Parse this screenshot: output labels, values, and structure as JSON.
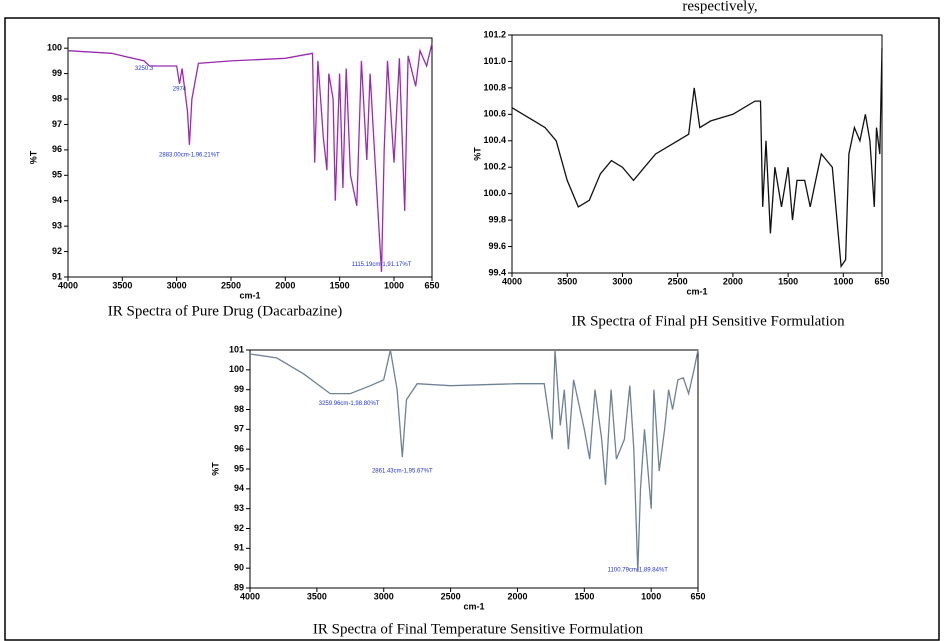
{
  "top_text": "respectively,",
  "chart_data": [
    {
      "type": "line",
      "caption": "IR Spectra of Pure Drug (Dacarbazine)",
      "xlabel": "cm-1",
      "ylabel": "%T",
      "color": "#9a2bb0",
      "xlim": [
        4000,
        650
      ],
      "ylim": [
        91,
        100.4
      ],
      "xticks": [
        4000,
        3500,
        3000,
        2500,
        2000,
        1500,
        1000,
        650
      ],
      "yticks": [
        91,
        92,
        93,
        94,
        95,
        96,
        97,
        98,
        99,
        100
      ],
      "x": [
        4000,
        3600,
        3300,
        3250,
        3000,
        2974,
        2950,
        2900,
        2883,
        2860,
        2800,
        2500,
        2000,
        1750,
        1730,
        1700,
        1650,
        1617,
        1600,
        1560,
        1540,
        1500,
        1470,
        1440,
        1400,
        1342,
        1300,
        1250,
        1220,
        1180,
        1115,
        1090,
        1060,
        1000,
        950,
        901,
        870,
        800,
        760,
        700,
        650
      ],
      "values": [
        99.9,
        99.8,
        99.5,
        99.3,
        99.3,
        98.6,
        99.2,
        97.5,
        96.2,
        98,
        99.4,
        99.5,
        99.6,
        99.8,
        95.5,
        99.5,
        96.5,
        95.2,
        99,
        98,
        94,
        99,
        94.5,
        99.2,
        95,
        93.8,
        99.5,
        95.6,
        99,
        96,
        91.2,
        96,
        99.5,
        95.5,
        99.6,
        93.6,
        99.7,
        98.5,
        99.9,
        99.3,
        100.2
      ],
      "annotations": [
        {
          "text": "3250.3",
          "x": 3300,
          "y": 99.2
        },
        {
          "text": "2974",
          "x": 2974,
          "y": 98.4
        },
        {
          "text": "2883.00cm-1,96.21%T",
          "x": 2883,
          "y": 95.8
        },
        {
          "text": "1115.19cm-1,91.17%T",
          "x": 1115,
          "y": 91.5
        }
      ]
    },
    {
      "type": "line",
      "caption": "IR Spectra of Final pH Sensitive Formulation",
      "xlabel": "cm-1",
      "ylabel": "%T",
      "color": "#111111",
      "xlim": [
        4000,
        650
      ],
      "ylim": [
        99.4,
        101.2
      ],
      "xticks": [
        4000,
        3500,
        3000,
        2500,
        2000,
        1500,
        1000,
        650
      ],
      "yticks": [
        99.4,
        99.6,
        99.8,
        {
          "value": 100,
          "label": "100.0"
        },
        100.2,
        100.4,
        100.6,
        100.8,
        {
          "value": 101,
          "label": "101.0"
        },
        101.2
      ],
      "x": [
        4000,
        3900,
        3800,
        3700,
        3600,
        3500,
        3400,
        3300,
        3200,
        3100,
        3000,
        2900,
        2800,
        2700,
        2500,
        2400,
        2350,
        2300,
        2200,
        2000,
        1800,
        1750,
        1730,
        1700,
        1660,
        1620,
        1560,
        1500,
        1460,
        1420,
        1350,
        1300,
        1250,
        1200,
        1100,
        1020,
        980,
        950,
        900,
        850,
        800,
        760,
        720,
        700,
        670,
        650
      ],
      "values": [
        100.65,
        100.6,
        100.55,
        100.5,
        100.4,
        100.1,
        99.9,
        99.95,
        100.15,
        100.25,
        100.2,
        100.1,
        100.2,
        100.3,
        100.4,
        100.45,
        100.8,
        100.5,
        100.55,
        100.6,
        100.7,
        100.7,
        99.9,
        100.4,
        99.7,
        100.2,
        99.9,
        100.2,
        99.8,
        100.1,
        100.1,
        99.9,
        100.1,
        100.3,
        100.2,
        99.45,
        99.5,
        100.3,
        100.5,
        100.4,
        100.6,
        100.4,
        99.9,
        100.5,
        100.3,
        101.1
      ]
    },
    {
      "type": "line",
      "caption": "IR Spectra of Final Temperature Sensitive Formulation",
      "xlabel": "cm-1",
      "ylabel": "%T",
      "color": "#6f8295",
      "xlim": [
        4000,
        650
      ],
      "ylim": [
        89,
        101
      ],
      "xticks": [
        4000,
        3500,
        3000,
        2500,
        2000,
        1500,
        1000,
        650
      ],
      "yticks": [
        89,
        90,
        91,
        92,
        93,
        94,
        95,
        96,
        97,
        98,
        99,
        100,
        101
      ],
      "x": [
        4000,
        3800,
        3600,
        3400,
        3250,
        3100,
        3000,
        2950,
        2900,
        2861,
        2830,
        2750,
        2500,
        2000,
        1800,
        1740,
        1719,
        1680,
        1650,
        1619,
        1580,
        1500,
        1460,
        1420,
        1370,
        1342,
        1300,
        1260,
        1200,
        1160,
        1130,
        1100,
        1080,
        1050,
        1000,
        980,
        940,
        900,
        870,
        840,
        800,
        760,
        720,
        680,
        650
      ],
      "values": [
        100.8,
        100.6,
        99.8,
        98.8,
        98.8,
        99.2,
        99.5,
        101,
        99,
        95.6,
        98.5,
        99.3,
        99.2,
        99.3,
        99.3,
        96.5,
        101,
        97.2,
        99,
        96,
        99.5,
        97,
        95.5,
        99,
        96.5,
        94.2,
        99,
        95.5,
        96.5,
        99.2,
        96,
        89.8,
        94,
        97,
        93,
        99,
        94.9,
        97,
        99,
        98,
        99.5,
        99.6,
        98.8,
        100,
        101
      ],
      "annotations": [
        {
          "text": "3259.96cm-1,98.80%T",
          "x": 3259,
          "y": 98.3
        },
        {
          "text": "2861.43cm-1,95.67%T",
          "x": 2861,
          "y": 94.9
        },
        {
          "text": "1100.79cm-1,89.84%T",
          "x": 1100,
          "y": 89.9
        }
      ]
    }
  ]
}
